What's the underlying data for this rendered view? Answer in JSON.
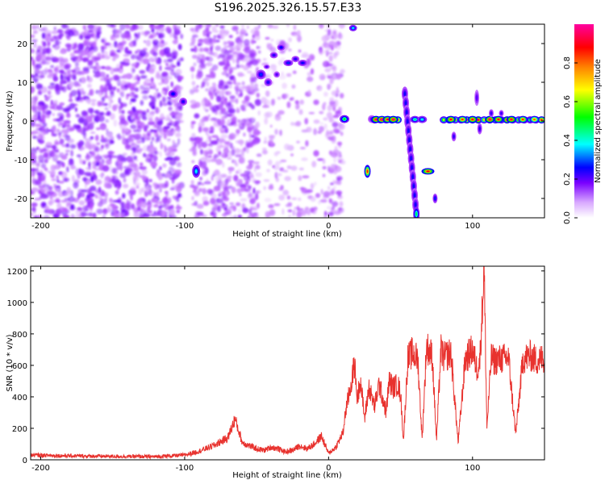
{
  "figure_title": "S196.2025.326.15.57.E33",
  "colors": {
    "snr_line": "#e8322e",
    "colormap": [
      "#ffffff",
      "#b450ff",
      "#6a00ff",
      "#0000ff",
      "#00ffff",
      "#00ff00",
      "#ffff00",
      "#ff8000",
      "#ff0000",
      "#ff00a0"
    ]
  },
  "chart_data": [
    {
      "type": "heatmap",
      "xlabel": "Height of straight line (km)",
      "ylabel": "Frequency (Hz)",
      "xlim": [
        -207,
        150
      ],
      "ylim": [
        -25,
        25
      ],
      "xticks": [
        -200,
        -100,
        0,
        100
      ],
      "xtick_labels": [
        "-200",
        "-100",
        "0",
        "100"
      ],
      "yticks": [
        -20,
        -10,
        0,
        10,
        20
      ],
      "ytick_labels": [
        "-20",
        "-10",
        "0",
        "10",
        "20"
      ],
      "colorbar": {
        "label": "Normalized spectral amplitude",
        "range": [
          0,
          1
        ],
        "ticks": [
          0,
          0.2,
          0.4,
          0.6,
          0.8
        ],
        "tick_labels": [
          "0.0",
          "0.2",
          "0.4",
          "0.6",
          "0.8"
        ]
      },
      "features": [
        {
          "x_range": [
            -207,
            -100
          ],
          "y_range": [
            -25,
            25
          ],
          "amplitude": 0.12
        },
        {
          "x_range": [
            -95,
            -50
          ],
          "y_range": [
            -25,
            25
          ],
          "amplitude": 0.1
        },
        {
          "x_range": [
            -50,
            -15
          ],
          "y_range": [
            8,
            22
          ],
          "amplitude": 0.25
        },
        {
          "x_range": [
            10,
            150
          ],
          "y_range": [
            -1,
            1
          ],
          "amplitude": 0.95
        },
        {
          "x_range": [
            -93,
            -90
          ],
          "y_range": [
            -14,
            -11
          ],
          "amplitude": 0.45
        },
        {
          "x_range": [
            -115,
            -100
          ],
          "y_range": [
            4,
            8
          ],
          "amplitude": 0.3
        },
        {
          "x_range": [
            24,
            29
          ],
          "y_range": [
            -14,
            -12
          ],
          "amplitude": 0.85
        },
        {
          "x_range": [
            65,
            73
          ],
          "y_range": [
            -14,
            -12
          ],
          "amplitude": 0.9
        },
        {
          "x_range": [
            48,
            65
          ],
          "y_range": [
            -25,
            10
          ],
          "amplitude": 0.35
        }
      ]
    },
    {
      "type": "line",
      "xlabel": "Height of straight line (km)",
      "ylabel": "SNR (10 * v/v)",
      "xlim": [
        -207,
        150
      ],
      "ylim": [
        0,
        1230
      ],
      "xticks": [
        -200,
        -100,
        0,
        100
      ],
      "xtick_labels": [
        "-200",
        "-100",
        "0",
        "100"
      ],
      "yticks": [
        0,
        200,
        400,
        600,
        800,
        1000,
        1200
      ],
      "ytick_labels": [
        "0",
        "200",
        "400",
        "600",
        "800",
        "1000",
        "1200"
      ],
      "series": [
        {
          "x": [
            -207,
            -180,
            -150,
            -120,
            -100,
            -90,
            -80,
            -70,
            -65,
            -60,
            -55,
            -50,
            -45,
            -40,
            -35,
            -30,
            -25,
            -20,
            -15,
            -10,
            -5,
            0,
            5,
            10,
            12,
            15,
            18,
            20,
            22,
            25,
            28,
            30,
            32,
            35,
            38,
            40,
            42,
            45,
            48,
            50,
            52,
            55,
            58,
            60,
            62,
            65,
            68,
            70,
            72,
            75,
            78,
            80,
            85,
            90,
            95,
            100,
            103,
            105,
            107,
            108,
            110,
            113,
            115,
            120,
            125,
            130,
            135,
            140,
            145,
            150
          ],
          "y": [
            30,
            25,
            22,
            20,
            30,
            55,
            90,
            140,
            260,
            110,
            90,
            70,
            60,
            80,
            70,
            50,
            60,
            90,
            70,
            100,
            150,
            40,
            80,
            170,
            320,
            450,
            610,
            380,
            520,
            260,
            460,
            400,
            340,
            480,
            380,
            300,
            500,
            460,
            480,
            420,
            120,
            640,
            680,
            660,
            640,
            130,
            720,
            690,
            660,
            120,
            700,
            650,
            680,
            110,
            640,
            700,
            580,
            620,
            1000,
            1230,
            200,
            650,
            630,
            640,
            650,
            160,
            640,
            660,
            630,
            650
          ]
        }
      ]
    }
  ]
}
